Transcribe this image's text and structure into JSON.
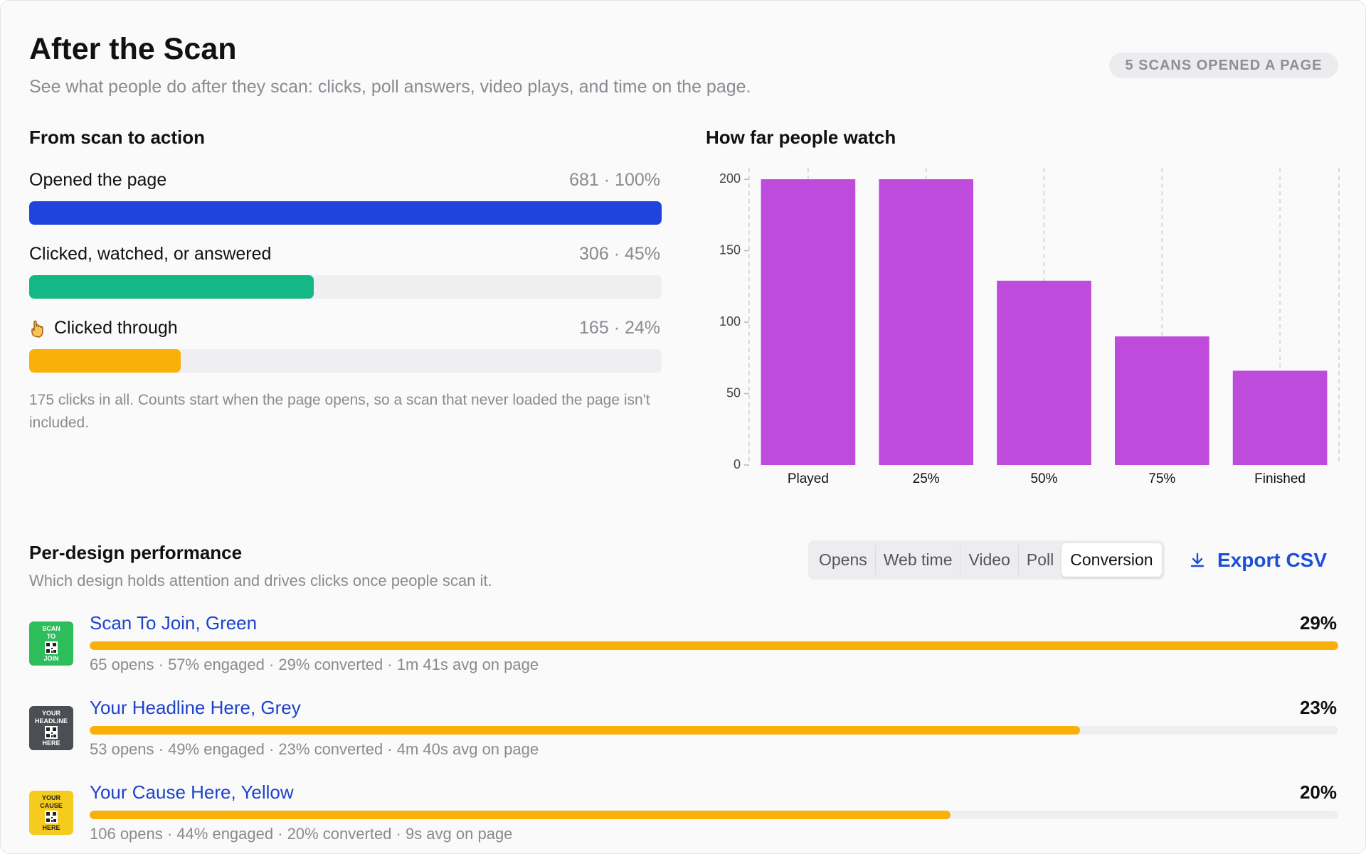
{
  "header": {
    "title": "After the Scan",
    "subtitle": "See what people do after they scan: clicks, poll answers, video plays, and time on the page.",
    "badge": "5 SCANS OPENED A PAGE"
  },
  "funnel": {
    "title": "From scan to action",
    "steps": [
      {
        "label": "Opened the page",
        "percent": 100,
        "value_label": "681 · 100%",
        "color": "#1f44dd"
      },
      {
        "label": "Clicked, watched, or answered",
        "percent": 45,
        "value_label": "306 · 45%",
        "color": "#13b886"
      },
      {
        "label": "Clicked through",
        "percent": 24,
        "value_label": "165 · 24%",
        "color": "#f9b008"
      }
    ],
    "note": "175 clicks in all. Counts start when the page opens, so a scan that never loaded the page isn't included."
  },
  "chart_data": {
    "type": "bar",
    "title": "How far people watch",
    "categories": [
      "Played",
      "25%",
      "50%",
      "75%",
      "Finished"
    ],
    "values": [
      200,
      200,
      129,
      90,
      66
    ],
    "color": "#be4bdb",
    "ylim": [
      0,
      208
    ],
    "yticks": [
      0,
      50,
      100,
      150,
      200
    ]
  },
  "designs": {
    "title": "Per-design performance",
    "subtitle": "Which design holds attention and drives clicks once people scan it.",
    "tabs": [
      "Opens",
      "Web time",
      "Video",
      "Poll",
      "Conversion"
    ],
    "active_tab": 4,
    "export": "Export CSV",
    "bar_color": "#f9b008",
    "rows": [
      {
        "name": "Scan To Join, Green",
        "percent": 29,
        "value_label": "29%",
        "stats": "65 opens · 57% engaged · 29% converted · 1m 41s avg on page",
        "thumb": [
          "SCAN",
          "TO",
          "JOIN"
        ],
        "thumb_color": "#2dbd5a"
      },
      {
        "name": "Your Headline Here, Grey",
        "percent": 23,
        "value_label": "23%",
        "stats": "53 opens · 49% engaged · 23% converted · 4m 40s avg on page",
        "thumb": [
          "YOUR",
          "HEADLINE",
          "HERE"
        ],
        "thumb_color": "#4b4f55"
      },
      {
        "name": "Your Cause Here, Yellow",
        "percent": 20,
        "value_label": "20%",
        "stats": "106 opens · 44% engaged · 20% converted · 9s avg on page",
        "thumb": [
          "YOUR",
          "CAUSE",
          "HERE"
        ],
        "thumb_color": "#f5cc1e"
      }
    ]
  }
}
